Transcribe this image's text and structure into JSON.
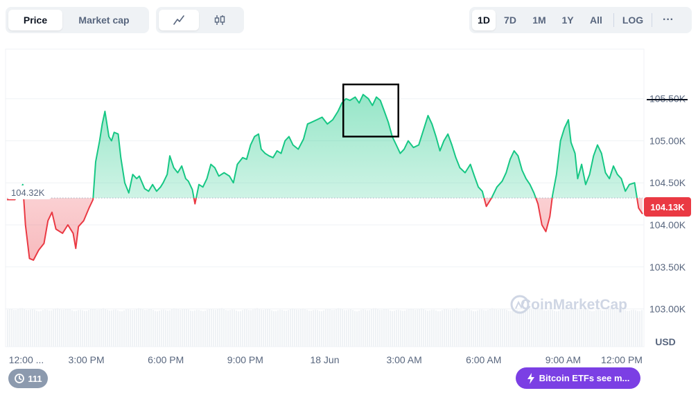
{
  "toolbar": {
    "metric_tabs": [
      {
        "label": "Price",
        "active": true
      },
      {
        "label": "Market cap",
        "active": false
      }
    ],
    "chart_style_icons": [
      "line-chart-icon",
      "candlestick-icon"
    ],
    "ranges": [
      {
        "label": "1D",
        "active": true
      },
      {
        "label": "7D",
        "active": false
      },
      {
        "label": "1M",
        "active": false
      },
      {
        "label": "1Y",
        "active": false
      },
      {
        "label": "All",
        "active": false
      }
    ],
    "log_label": "LOG",
    "more_label": "···"
  },
  "colors": {
    "up": "#16c784",
    "down": "#ea3943",
    "grid": "#eff2f5",
    "badge": "#ea3943"
  },
  "chart_data": {
    "type": "area",
    "currency": "USD",
    "baseline": 104.32,
    "baseline_label": "104.32K",
    "current_label": "104.13K",
    "ylim": [
      102.7,
      105.95
    ],
    "y_ticks": [
      {
        "value": 105.5,
        "label": "105.50K"
      },
      {
        "value": 105.0,
        "label": "105.00K"
      },
      {
        "value": 104.5,
        "label": "104.50K"
      },
      {
        "value": 104.0,
        "label": "104.00K"
      },
      {
        "value": 103.5,
        "label": "103.50K"
      },
      {
        "value": 103.0,
        "label": "103.00K"
      }
    ],
    "xlim": [
      0,
      24
    ],
    "x_ticks": [
      {
        "t": 0.3,
        "label": "12:00 ..."
      },
      {
        "t": 3,
        "label": "3:00 PM"
      },
      {
        "t": 6,
        "label": "6:00 PM"
      },
      {
        "t": 9,
        "label": "9:00 PM"
      },
      {
        "t": 12,
        "label": "18 Jun"
      },
      {
        "t": 15,
        "label": "3:00 AM"
      },
      {
        "t": 18,
        "label": "6:00 AM"
      },
      {
        "t": 21,
        "label": "9:00 AM"
      },
      {
        "t": 24,
        "label": "12:00 PM"
      }
    ],
    "series": [
      {
        "points": [
          [
            0.0,
            104.3
          ],
          [
            0.3,
            104.3
          ],
          [
            0.6,
            104.48
          ],
          [
            0.7,
            104.0
          ],
          [
            0.85,
            103.6
          ],
          [
            1.0,
            103.58
          ],
          [
            1.2,
            103.7
          ],
          [
            1.4,
            103.78
          ],
          [
            1.55,
            104.05
          ],
          [
            1.7,
            104.15
          ],
          [
            1.85,
            103.95
          ],
          [
            2.1,
            103.9
          ],
          [
            2.3,
            104.0
          ],
          [
            2.5,
            103.9
          ],
          [
            2.6,
            103.72
          ],
          [
            2.7,
            103.98
          ],
          [
            2.9,
            104.05
          ],
          [
            3.1,
            104.2
          ],
          [
            3.25,
            104.3
          ],
          [
            3.35,
            104.75
          ],
          [
            3.5,
            105.0
          ],
          [
            3.6,
            105.2
          ],
          [
            3.7,
            105.35
          ],
          [
            3.85,
            105.05
          ],
          [
            3.95,
            105.0
          ],
          [
            4.05,
            105.1
          ],
          [
            4.2,
            105.08
          ],
          [
            4.3,
            104.8
          ],
          [
            4.45,
            104.5
          ],
          [
            4.6,
            104.38
          ],
          [
            4.75,
            104.6
          ],
          [
            4.9,
            104.55
          ],
          [
            5.0,
            104.58
          ],
          [
            5.2,
            104.43
          ],
          [
            5.35,
            104.4
          ],
          [
            5.5,
            104.48
          ],
          [
            5.65,
            104.4
          ],
          [
            5.8,
            104.45
          ],
          [
            5.9,
            104.5
          ],
          [
            6.05,
            104.6
          ],
          [
            6.15,
            104.82
          ],
          [
            6.3,
            104.68
          ],
          [
            6.45,
            104.62
          ],
          [
            6.6,
            104.7
          ],
          [
            6.75,
            104.55
          ],
          [
            6.85,
            104.52
          ],
          [
            7.0,
            104.42
          ],
          [
            7.1,
            104.25
          ],
          [
            7.25,
            104.48
          ],
          [
            7.4,
            104.45
          ],
          [
            7.55,
            104.55
          ],
          [
            7.7,
            104.72
          ],
          [
            7.85,
            104.68
          ],
          [
            8.0,
            104.58
          ],
          [
            8.2,
            104.62
          ],
          [
            8.4,
            104.58
          ],
          [
            8.55,
            104.5
          ],
          [
            8.7,
            104.72
          ],
          [
            8.9,
            104.8
          ],
          [
            9.05,
            104.78
          ],
          [
            9.2,
            104.95
          ],
          [
            9.35,
            105.05
          ],
          [
            9.5,
            105.08
          ],
          [
            9.6,
            104.9
          ],
          [
            9.75,
            104.85
          ],
          [
            9.9,
            104.82
          ],
          [
            10.05,
            104.8
          ],
          [
            10.2,
            104.88
          ],
          [
            10.35,
            104.85
          ],
          [
            10.5,
            105.0
          ],
          [
            10.65,
            105.05
          ],
          [
            10.8,
            104.95
          ],
          [
            11.0,
            104.9
          ],
          [
            11.2,
            105.02
          ],
          [
            11.35,
            105.2
          ],
          [
            11.5,
            105.22
          ],
          [
            11.7,
            105.25
          ],
          [
            11.9,
            105.28
          ],
          [
            12.1,
            105.2
          ],
          [
            12.3,
            105.25
          ],
          [
            12.5,
            105.35
          ],
          [
            12.65,
            105.45
          ],
          [
            12.8,
            105.5
          ],
          [
            12.95,
            105.48
          ],
          [
            13.15,
            105.52
          ],
          [
            13.3,
            105.45
          ],
          [
            13.45,
            105.55
          ],
          [
            13.65,
            105.5
          ],
          [
            13.8,
            105.42
          ],
          [
            13.95,
            105.52
          ],
          [
            14.1,
            105.48
          ],
          [
            14.25,
            105.35
          ],
          [
            14.4,
            105.22
          ],
          [
            14.55,
            105.05
          ],
          [
            14.7,
            104.95
          ],
          [
            14.85,
            104.85
          ],
          [
            15.0,
            104.9
          ],
          [
            15.15,
            105.0
          ],
          [
            15.35,
            104.92
          ],
          [
            15.55,
            104.95
          ],
          [
            15.75,
            105.15
          ],
          [
            15.9,
            105.3
          ],
          [
            16.05,
            105.2
          ],
          [
            16.2,
            105.05
          ],
          [
            16.35,
            104.88
          ],
          [
            16.5,
            105.0
          ],
          [
            16.65,
            105.08
          ],
          [
            16.8,
            104.95
          ],
          [
            16.95,
            104.8
          ],
          [
            17.1,
            104.68
          ],
          [
            17.3,
            104.62
          ],
          [
            17.5,
            104.72
          ],
          [
            17.65,
            104.58
          ],
          [
            17.8,
            104.45
          ],
          [
            17.95,
            104.4
          ],
          [
            18.1,
            104.22
          ],
          [
            18.3,
            104.32
          ],
          [
            18.5,
            104.45
          ],
          [
            18.7,
            104.52
          ],
          [
            18.85,
            104.62
          ],
          [
            19.0,
            104.78
          ],
          [
            19.15,
            104.88
          ],
          [
            19.3,
            104.82
          ],
          [
            19.45,
            104.65
          ],
          [
            19.6,
            104.55
          ],
          [
            19.75,
            104.48
          ],
          [
            19.9,
            104.38
          ],
          [
            20.05,
            104.25
          ],
          [
            20.2,
            104.0
          ],
          [
            20.35,
            103.92
          ],
          [
            20.5,
            104.1
          ],
          [
            20.6,
            104.35
          ],
          [
            20.75,
            104.6
          ],
          [
            20.9,
            105.0
          ],
          [
            21.05,
            105.15
          ],
          [
            21.2,
            105.25
          ],
          [
            21.3,
            104.98
          ],
          [
            21.45,
            104.85
          ],
          [
            21.55,
            104.55
          ],
          [
            21.7,
            104.72
          ],
          [
            21.85,
            104.48
          ],
          [
            22.0,
            104.6
          ],
          [
            22.15,
            104.82
          ],
          [
            22.3,
            104.95
          ],
          [
            22.45,
            104.85
          ],
          [
            22.6,
            104.62
          ],
          [
            22.75,
            104.55
          ],
          [
            22.9,
            104.7
          ],
          [
            23.05,
            104.6
          ],
          [
            23.2,
            104.55
          ],
          [
            23.35,
            104.4
          ],
          [
            23.5,
            104.48
          ],
          [
            23.7,
            104.5
          ],
          [
            23.85,
            104.2
          ],
          [
            24.0,
            104.13
          ]
        ]
      }
    ],
    "volume": {
      "relative_level": 0.92
    },
    "highlight": {
      "t0": 12.7,
      "t1": 14.78,
      "v0": 105.05,
      "v1": 105.67
    },
    "watermark": "CoinMarketCap"
  },
  "pills": {
    "history_count": "111",
    "news_label": "Bitcoin ETFs see m..."
  }
}
